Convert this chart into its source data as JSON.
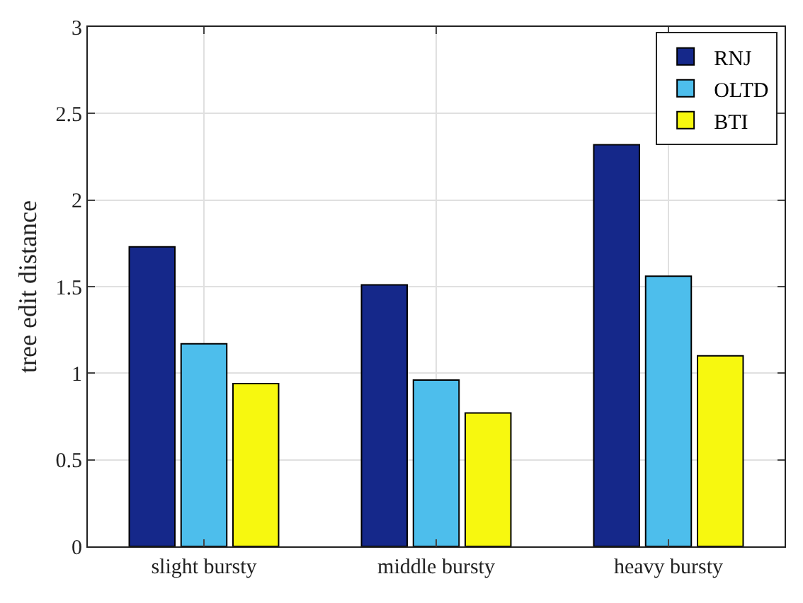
{
  "chart_data": {
    "type": "bar",
    "ylabel": "tree edit distance",
    "categories": [
      "slight bursty",
      "middle bursty",
      "heavy bursty"
    ],
    "series": [
      {
        "name": "RNJ",
        "color": "#15288a",
        "values": [
          1.73,
          1.51,
          2.32
        ]
      },
      {
        "name": "OLTD",
        "color": "#4dbeec",
        "values": [
          1.17,
          0.96,
          1.56
        ]
      },
      {
        "name": "BTI",
        "color": "#f7f80f",
        "values": [
          0.94,
          0.77,
          1.1
        ]
      }
    ],
    "ylim": [
      0,
      3
    ],
    "yticks": [
      0,
      0.5,
      1,
      1.5,
      2,
      2.5,
      3
    ],
    "grid": true,
    "legend": "top right"
  }
}
